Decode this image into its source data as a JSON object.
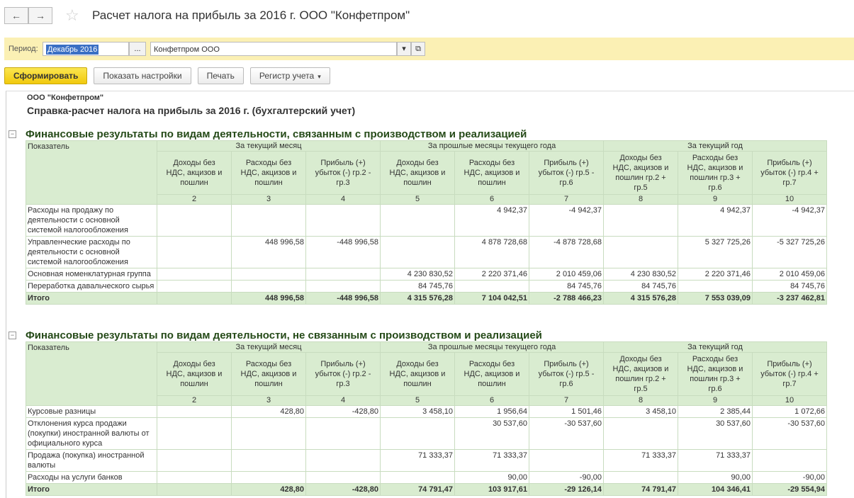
{
  "toolbar": {
    "title": "Расчет налога на прибыль за 2016 г. ООО \"Конфетпром\""
  },
  "form": {
    "period_label": "Период:",
    "period_value": "Декабрь 2016",
    "period_button": "...",
    "org_value": "Конфетпром ООО"
  },
  "buttons": [
    "Сформировать",
    "Показать настройки",
    "Печать",
    "Регистр учета"
  ],
  "report": {
    "organization": "ООО \"Конфетпром\"",
    "title": "Справка-расчет налога на прибыль за 2016 г. (бухгалтерский учет)",
    "sections": [
      {
        "title": "Финансовые результаты по видам деятельности, связанным с производством и реализацией",
        "indicator_header": "Показатель",
        "groups": [
          "За текущий месяц",
          "За прошлые месяцы текущего года",
          "За текущий год"
        ],
        "columns": [
          "Доходы без НДС, акцизов и пошлин",
          "Расходы без НДС, акцизов и пошлин",
          "Прибыль (+) убыток (-) гр.2 - гр.3",
          "Доходы без НДС, акцизов и пошлин",
          "Расходы без НДС, акцизов и пошлин",
          "Прибыль (+) убыток (-) гр.5 - гр.6",
          "Доходы без НДС, акцизов и пошлин гр.2 + гр.5",
          "Расходы без НДС, акцизов и пошлин гр.3 + гр.6",
          "Прибыль (+) убыток (-) гр.4 + гр.7"
        ],
        "column_numbers": [
          2,
          3,
          4,
          5,
          6,
          7,
          8,
          9,
          10
        ],
        "rows": [
          {
            "label": "Расходы на продажу по деятельности с основной системой налогообложения",
            "values": [
              null,
              null,
              null,
              null,
              "4 942,37",
              "-4 942,37",
              null,
              "4 942,37",
              "-4 942,37"
            ]
          },
          {
            "label": "Управленческие расходы по деятельности с основной системой налогообложения",
            "values": [
              null,
              "448 996,58",
              "-448 996,58",
              null,
              "4 878 728,68",
              "-4 878 728,68",
              null,
              "5 327 725,26",
              "-5 327 725,26"
            ]
          },
          {
            "label": "Основная номенклатурная группа",
            "values": [
              null,
              null,
              null,
              "4 230 830,52",
              "2 220 371,46",
              "2 010 459,06",
              "4 230 830,52",
              "2 220 371,46",
              "2 010 459,06"
            ]
          },
          {
            "label": "Переработка давальческого сырья",
            "values": [
              null,
              null,
              null,
              "84 745,76",
              null,
              "84 745,76",
              "84 745,76",
              null,
              "84 745,76"
            ]
          }
        ],
        "total": {
          "label": "Итого",
          "values": [
            null,
            "448 996,58",
            "-448 996,58",
            "4 315 576,28",
            "7 104 042,51",
            "-2 788 466,23",
            "4 315 576,28",
            "7 553 039,09",
            "-3 237 462,81"
          ]
        }
      },
      {
        "title": "Финансовые результаты по видам деятельности, не связанным с производством и реализацией",
        "indicator_header": "Показатель",
        "groups": [
          "За текущий месяц",
          "За прошлые месяцы текущего года",
          "За текущий год"
        ],
        "columns": [
          "Доходы без НДС, акцизов и пошлин",
          "Расходы без НДС, акцизов и пошлин",
          "Прибыль (+) убыток (-) гр.2 - гр.3",
          "Доходы без НДС, акцизов и пошлин",
          "Расходы без НДС, акцизов и пошлин",
          "Прибыль (+) убыток (-) гр.5 - гр.6",
          "Доходы без НДС, акцизов и пошлин гр.2 + гр.5",
          "Расходы без НДС, акцизов и пошлин гр.3 + гр.6",
          "Прибыль (+) убыток (-) гр.4 + гр.7"
        ],
        "column_numbers": [
          2,
          3,
          4,
          5,
          6,
          7,
          8,
          9,
          10
        ],
        "rows": [
          {
            "label": "Курсовые разницы",
            "values": [
              null,
              "428,80",
              "-428,80",
              "3 458,10",
              "1 956,64",
              "1 501,46",
              "3 458,10",
              "2 385,44",
              "1 072,66"
            ]
          },
          {
            "label": "Отклонения курса продажи (покупки) иностранной валюты от официального курса",
            "values": [
              null,
              null,
              null,
              null,
              "30 537,60",
              "-30 537,60",
              null,
              "30 537,60",
              "-30 537,60"
            ]
          },
          {
            "label": "Продажа (покупка) иностранной валюты",
            "values": [
              null,
              null,
              null,
              "71 333,37",
              "71 333,37",
              null,
              "71 333,37",
              "71 333,37",
              null
            ]
          },
          {
            "label": "Расходы на услуги банков",
            "values": [
              null,
              null,
              null,
              null,
              "90,00",
              "-90,00",
              null,
              "90,00",
              "-90,00"
            ]
          }
        ],
        "total": {
          "label": "Итого",
          "values": [
            null,
            "428,80",
            "-428,80",
            "74 791,47",
            "103 917,61",
            "-29 126,14",
            "74 791,47",
            "104 346,41",
            "-29 554,94"
          ]
        }
      }
    ]
  }
}
